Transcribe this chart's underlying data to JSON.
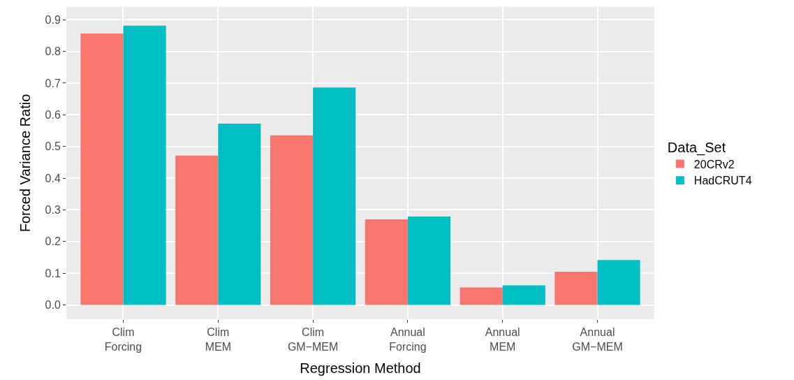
{
  "chart_data": {
    "type": "bar",
    "xlabel": "Regression Method",
    "ylabel": "Forced Variance Ratio",
    "legend_title": "Data_Set",
    "categories": [
      "Clim\nForcing",
      "Clim\nMEM",
      "Clim\nGM−MEM",
      "Annual\nForcing",
      "Annual\nMEM",
      "Annual\nGM−MEM"
    ],
    "series": [
      {
        "name": "20CRv2",
        "color": "#f8766d",
        "values": [
          0.856,
          0.471,
          0.535,
          0.27,
          0.055,
          0.105
        ]
      },
      {
        "name": "HadCRUT4",
        "color": "#00bfc4",
        "values": [
          0.881,
          0.572,
          0.686,
          0.279,
          0.062,
          0.142
        ]
      }
    ],
    "ylim": [
      -0.045,
      0.94
    ],
    "yticks": [
      {
        "value": 0,
        "label": "0.0"
      },
      0.1,
      0.2,
      0.3,
      0.4,
      0.5,
      0.6,
      0.7,
      0.8,
      0.9
    ],
    "grid": true,
    "legend": "right"
  }
}
